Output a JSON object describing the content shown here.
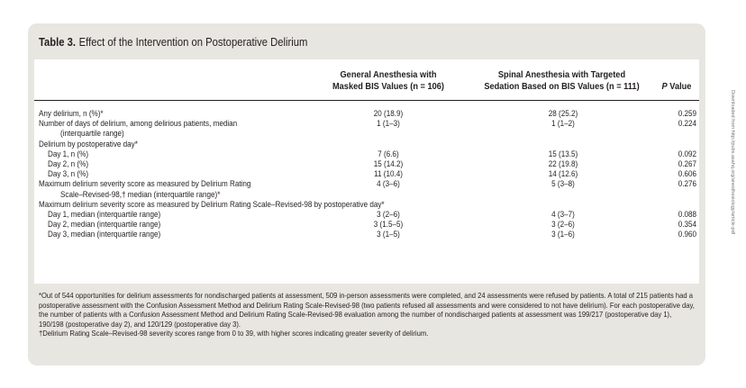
{
  "table": {
    "number": "Table 3.",
    "title": "Effect of the Intervention on Postoperative Delirium",
    "col1_line1": "General Anesthesia with",
    "col1_line2": "Masked BIS Values (n = 106)",
    "col2_line1": "Spinal Anesthesia with Targeted",
    "col2_line2": "Sedation Based on BIS Values (n = 111)",
    "col3_p": "P",
    "col3_rest": " Value",
    "rows": [
      {
        "label": "Any delirium, n (%)*",
        "indent": 0,
        "v1": "20 (18.9)",
        "v2": "28 (25.2)",
        "p": "0.259"
      },
      {
        "label": "Number of days of delirium, among delirious patients, median",
        "indent": 0,
        "v1": "1 (1–3)",
        "v2": "1 (1–2)",
        "p": "0.224"
      },
      {
        "label": "(interquartile range)",
        "indent": 2,
        "v1": "",
        "v2": "",
        "p": ""
      },
      {
        "label": "Delirium by postoperative day*",
        "indent": 0,
        "v1": "",
        "v2": "",
        "p": ""
      },
      {
        "label": "Day 1, n (%)",
        "indent": 1,
        "v1": "7 (6.6)",
        "v2": "15 (13.5)",
        "p": "0.092"
      },
      {
        "label": "Day 2, n (%)",
        "indent": 1,
        "v1": "15 (14.2)",
        "v2": "22 (19.8)",
        "p": "0.267"
      },
      {
        "label": "Day 3, n (%)",
        "indent": 1,
        "v1": "11 (10.4)",
        "v2": "14 (12.6)",
        "p": "0.606"
      },
      {
        "label": "Maximum delirium severity score as measured by Delirium Rating",
        "indent": 0,
        "v1": "4 (3–6)",
        "v2": "5 (3–8)",
        "p": "0.276"
      },
      {
        "label": "Scale–Revised-98,† median (interquartile range)*",
        "indent": 2,
        "v1": "",
        "v2": "",
        "p": ""
      },
      {
        "label": "Maximum delirium severity score as measured by Delirium Rating Scale–Revised-98 by postoperative day*",
        "indent": 0,
        "v1": "",
        "v2": "",
        "p": ""
      },
      {
        "label": "Day 1, median (interquartile range)",
        "indent": 1,
        "v1": "3 (2–6)",
        "v2": "4 (3–7)",
        "p": "0.088"
      },
      {
        "label": "Day 2, median (interquartile range)",
        "indent": 1,
        "v1": "3 (1.5–5)",
        "v2": "3 (2–6)",
        "p": "0.354"
      },
      {
        "label": "Day 3, median (interquartile range)",
        "indent": 1,
        "v1": "3 (1–5)",
        "v2": "3 (1–6)",
        "p": "0.960"
      }
    ],
    "footnote1": "*Out of 544 opportunities for delirium assessments for nondischarged patients at assessment, 509 in-person assessments were completed, and 24 assessments were refused by patients. A total of 215 patients had a postoperative assessment with the Confusion Assessment Method and Delirium Rating Scale-Revised-98 (two patients refused all assessments and were considered to not have delirium). For each postoperative day, the number of patients with a Confusion Assessment Method and Delirium Rating Scale-Revised-98 evaluation among the number of nondischarged patients at assessment was 199/217 (postoperative day 1), 190/198 (postoperative day 2), and 120/129 (postoperative day 3).",
    "footnote2": "†Delirium Rating Scale–Revised-98 severity scores range from 0 to 39, with higher scores indicating greater severity of delirium."
  },
  "side_text": "Downloaded from http://pubs.asahq.org/anesthesiology/article-pdf"
}
